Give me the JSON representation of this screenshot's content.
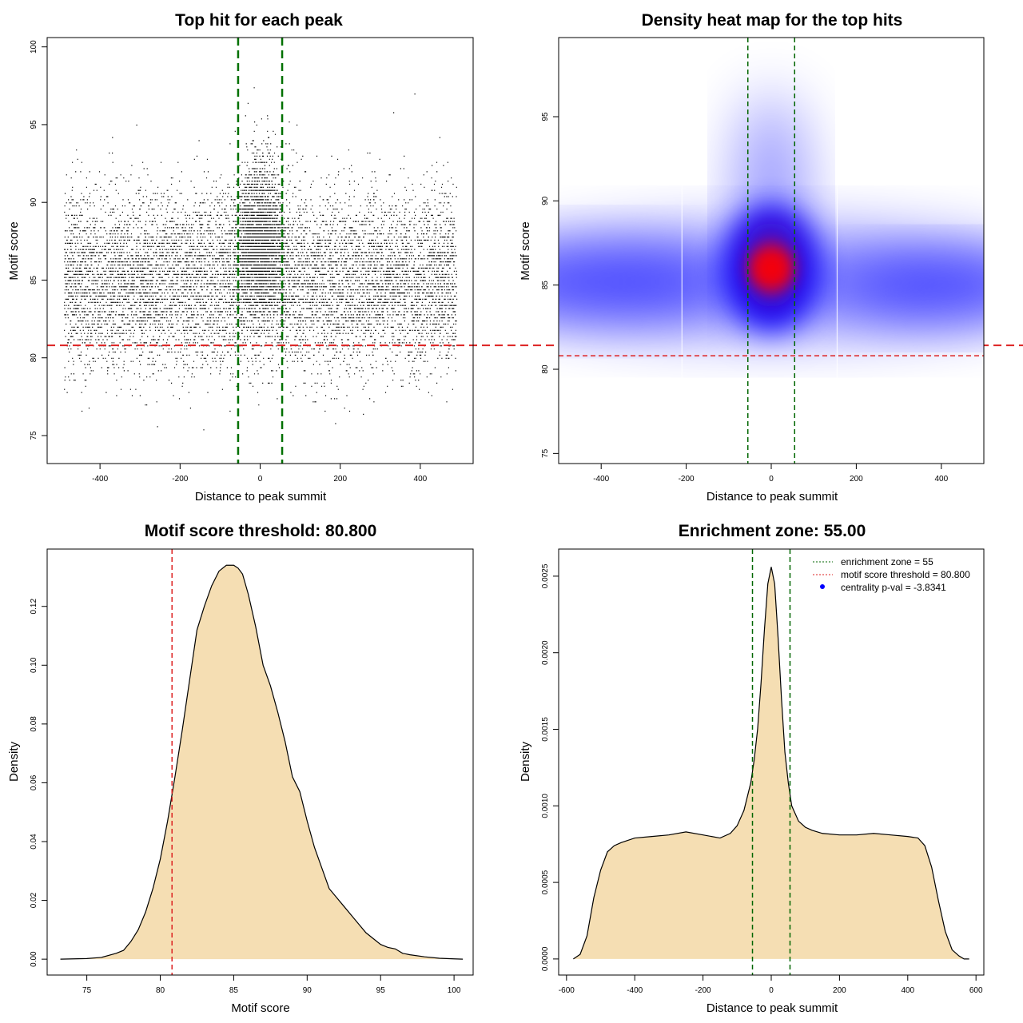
{
  "figure": {
    "description_free": true
  },
  "chart_data": [
    {
      "id": "scatter",
      "type": "scatter",
      "title": "Top hit for each peak",
      "xlabel": "Distance to peak summit",
      "ylabel": "Motif score",
      "xlim": [
        -532,
        532
      ],
      "ylim": [
        73.2,
        100.6
      ],
      "xticks": [
        -400,
        -200,
        0,
        200,
        400
      ],
      "yticks": [
        75,
        80,
        85,
        90,
        95,
        100
      ],
      "xtick_labels": [
        "-400",
        "-200",
        "0",
        "200",
        "400"
      ],
      "ytick_labels": [
        "75",
        "80",
        "85",
        "90",
        "95",
        "100"
      ],
      "background_x_range": [
        -490,
        490
      ],
      "background_score_mean": 85.0,
      "background_score_sd": 2.8,
      "central_score_mean": 86.5,
      "central_score_sd": 2.9,
      "vlines": [
        -55,
        55
      ],
      "hline": 80.8,
      "colors": {
        "points": "#000000",
        "vline": "#007000",
        "hline": "#dd2222"
      }
    },
    {
      "id": "heatmap",
      "type": "heatmap",
      "title": "Density heat map for the top hits",
      "xlabel": "Distance to peak summit",
      "ylabel": "Motif score",
      "xlim": [
        -500,
        500
      ],
      "ylim": [
        74.4,
        99.7
      ],
      "xticks": [
        -400,
        -200,
        0,
        200,
        400
      ],
      "yticks": [
        75,
        80,
        85,
        90,
        95
      ],
      "xtick_labels": [
        "-400",
        "-200",
        "0",
        "200",
        "400"
      ],
      "ytick_labels": [
        "75",
        "80",
        "85",
        "90",
        "95"
      ],
      "peak": {
        "x": 0,
        "y": 86.0
      },
      "vlines": [
        -55,
        55
      ],
      "hline": 80.8,
      "colors": {
        "low": "#ffffff",
        "mid": "#0000ff",
        "high": "#ff0000",
        "vline": "#006600",
        "hline": "#dd2222"
      }
    },
    {
      "id": "score-density",
      "type": "area",
      "title": "Motif score threshold: 80.800",
      "xlabel": "Motif score",
      "ylabel": "Density",
      "xlim": [
        72.3,
        101.3
      ],
      "ylim": [
        -0.0054,
        0.1395
      ],
      "xticks": [
        75,
        80,
        85,
        90,
        95,
        100
      ],
      "yticks": [
        0.0,
        0.02,
        0.04,
        0.06,
        0.08,
        0.1,
        0.12
      ],
      "xtick_labels": [
        "75",
        "80",
        "85",
        "90",
        "95",
        "100"
      ],
      "ytick_labels": [
        "0.00",
        "0.02",
        "0.04",
        "0.06",
        "0.08",
        "0.10",
        "0.12"
      ],
      "x": [
        73.2,
        75,
        76,
        77,
        77.5,
        78,
        78.5,
        79,
        79.5,
        80,
        80.5,
        81,
        81.5,
        82,
        82.5,
        83,
        83.5,
        84,
        84.5,
        85,
        85.3,
        85.6,
        86,
        86.5,
        87,
        87.5,
        88,
        88.5,
        89,
        89.5,
        90,
        90.5,
        91,
        91.5,
        92,
        92.5,
        93,
        93.5,
        94,
        94.5,
        95,
        95.5,
        96,
        96.5,
        97,
        98,
        99,
        100,
        100.6
      ],
      "y": [
        0.0,
        0.0002,
        0.0006,
        0.002,
        0.003,
        0.006,
        0.01,
        0.016,
        0.024,
        0.034,
        0.047,
        0.062,
        0.078,
        0.095,
        0.112,
        0.12,
        0.127,
        0.132,
        0.134,
        0.134,
        0.133,
        0.131,
        0.124,
        0.113,
        0.1,
        0.093,
        0.084,
        0.074,
        0.062,
        0.057,
        0.047,
        0.038,
        0.031,
        0.024,
        0.021,
        0.018,
        0.015,
        0.012,
        0.009,
        0.007,
        0.005,
        0.004,
        0.0035,
        0.002,
        0.0015,
        0.0008,
        0.0003,
        0.0001,
        0.0
      ],
      "vline": 80.8,
      "colors": {
        "fill": "#f5deb3",
        "line": "#000000",
        "vline": "#dd2222"
      }
    },
    {
      "id": "distance-density",
      "type": "area",
      "title": "Enrichment zone: 55.00",
      "xlabel": "Distance to peak summit",
      "ylabel": "Density",
      "xlim": [
        -623,
        623
      ],
      "ylim": [
        -0.000105,
        0.002677
      ],
      "xticks": [
        -600,
        -400,
        -200,
        0,
        200,
        400,
        600
      ],
      "yticks": [
        0.0,
        0.0005,
        0.001,
        0.0015,
        0.002,
        0.0025
      ],
      "xtick_labels": [
        "-600",
        "-400",
        "-200",
        "0",
        "200",
        "400",
        "600"
      ],
      "ytick_labels": [
        "0.0000",
        "0.0005",
        "0.0010",
        "0.0015",
        "0.0020",
        "0.0025"
      ],
      "x": [
        -580,
        -560,
        -540,
        -520,
        -500,
        -480,
        -460,
        -440,
        -400,
        -350,
        -300,
        -250,
        -200,
        -150,
        -120,
        -100,
        -80,
        -60,
        -50,
        -40,
        -30,
        -20,
        -10,
        0,
        10,
        20,
        30,
        40,
        50,
        60,
        80,
        100,
        120,
        150,
        200,
        250,
        300,
        350,
        400,
        430,
        450,
        470,
        490,
        510,
        530,
        550,
        565,
        580
      ],
      "y": [
        0.0,
        3e-05,
        0.00015,
        0.0004,
        0.00058,
        0.0007,
        0.00074,
        0.00076,
        0.00079,
        0.0008,
        0.00081,
        0.00083,
        0.00081,
        0.00079,
        0.00082,
        0.00087,
        0.00097,
        0.00115,
        0.0013,
        0.0015,
        0.0018,
        0.00215,
        0.00245,
        0.00256,
        0.00245,
        0.0021,
        0.0017,
        0.00135,
        0.00115,
        0.001,
        0.0009,
        0.00086,
        0.00084,
        0.00082,
        0.00081,
        0.00081,
        0.00082,
        0.00081,
        0.0008,
        0.00079,
        0.00074,
        0.0006,
        0.00038,
        0.00018,
        6e-05,
        2e-05,
        0.0,
        0.0
      ],
      "vlines": [
        -55,
        55
      ],
      "legend": {
        "position": "top-right",
        "entries": [
          {
            "label": "enrichment zone = 55",
            "symbol": "dotted-line",
            "color": "#006600"
          },
          {
            "label": "motif score threshold = 80.800",
            "symbol": "dotted-line",
            "color": "#dd2222"
          },
          {
            "label": "centrality p-val = -3.8341",
            "symbol": "dot",
            "color": "#0000ff"
          }
        ]
      },
      "colors": {
        "fill": "#f5deb3",
        "line": "#000000",
        "vline": "#006600"
      }
    }
  ]
}
